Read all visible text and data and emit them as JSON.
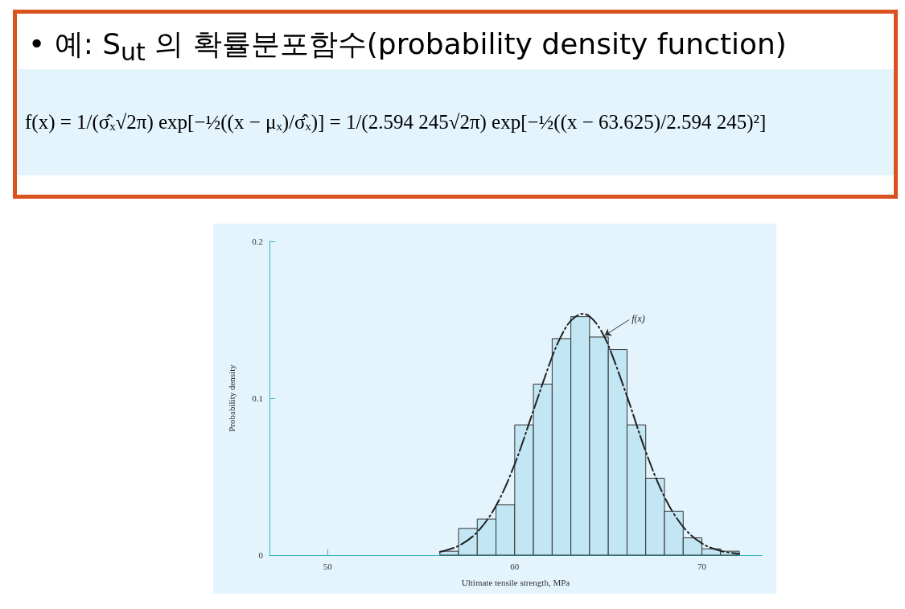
{
  "chart_data": {
    "type": "histogram",
    "title": "• 예: S$_{ut}$ 의 확률분포함수(probability density function)",
    "subtitle": "f(x) = 1/(σ̂ₓ√2π) exp[−½((x − μₓ)/σ̂ₓ)] = 1/(2.594 245√2π) exp[−½((x − 63.625)/2.594 245)²]",
    "xlabel": "Ultimate tensile strength, MPa",
    "ylabel": "Probability density",
    "bins": [
      56,
      57,
      58,
      59,
      60,
      61,
      62,
      63,
      64,
      65,
      66,
      67,
      68,
      69,
      70,
      71,
      72
    ],
    "values": [
      0.0025,
      0.017,
      0.023,
      0.032,
      0.083,
      0.109,
      0.138,
      0.152,
      0.139,
      0.131,
      0.083,
      0.049,
      0.028,
      0.011,
      0.004,
      0.0025
    ],
    "color": "#c3e6f5",
    "series": [
      {
        "type": "line",
        "color": "#222222",
        "line_style": "dashed",
        "marker": "none",
        "x": [
          56,
          57,
          58,
          59,
          60,
          61,
          62,
          62.5,
          63,
          63.625,
          64,
          64.5,
          65,
          66,
          67,
          68,
          69,
          70,
          71,
          72
        ],
        "values": [
          0.002,
          0.0059,
          0.0147,
          0.0314,
          0.058,
          0.0922,
          0.1264,
          0.14,
          0.1494,
          0.1538,
          0.1522,
          0.1453,
          0.1337,
          0.1012,
          0.066,
          0.0371,
          0.018,
          0.0075,
          0.0027,
          0.0008
        ]
      }
    ],
    "annotations": [
      {
        "text": "f(x)",
        "x": 64.8,
        "y": 0.14
      }
    ],
    "xlim": [
      46.9,
      73.2
    ],
    "ylim": [
      0,
      0.2
    ],
    "xticks": [
      50,
      60,
      70
    ],
    "yticks": [
      0,
      0.1,
      0.2
    ],
    "grid": false
  }
}
